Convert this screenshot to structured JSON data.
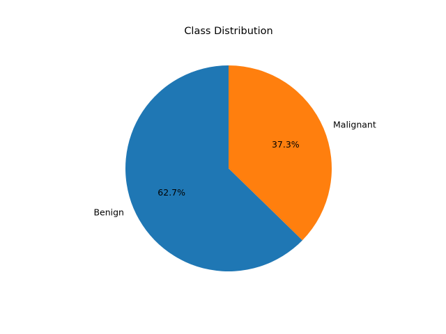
{
  "chart_data": {
    "type": "pie",
    "title": "Class Distribution",
    "categories": [
      "Benign",
      "Malignant"
    ],
    "values": [
      62.7,
      37.3
    ],
    "value_labels": [
      "62.7%",
      "37.3%"
    ],
    "colors": [
      "#1f77b4",
      "#ff7f0e"
    ],
    "start_angle_deg": 90,
    "direction": "counterclockwise"
  }
}
